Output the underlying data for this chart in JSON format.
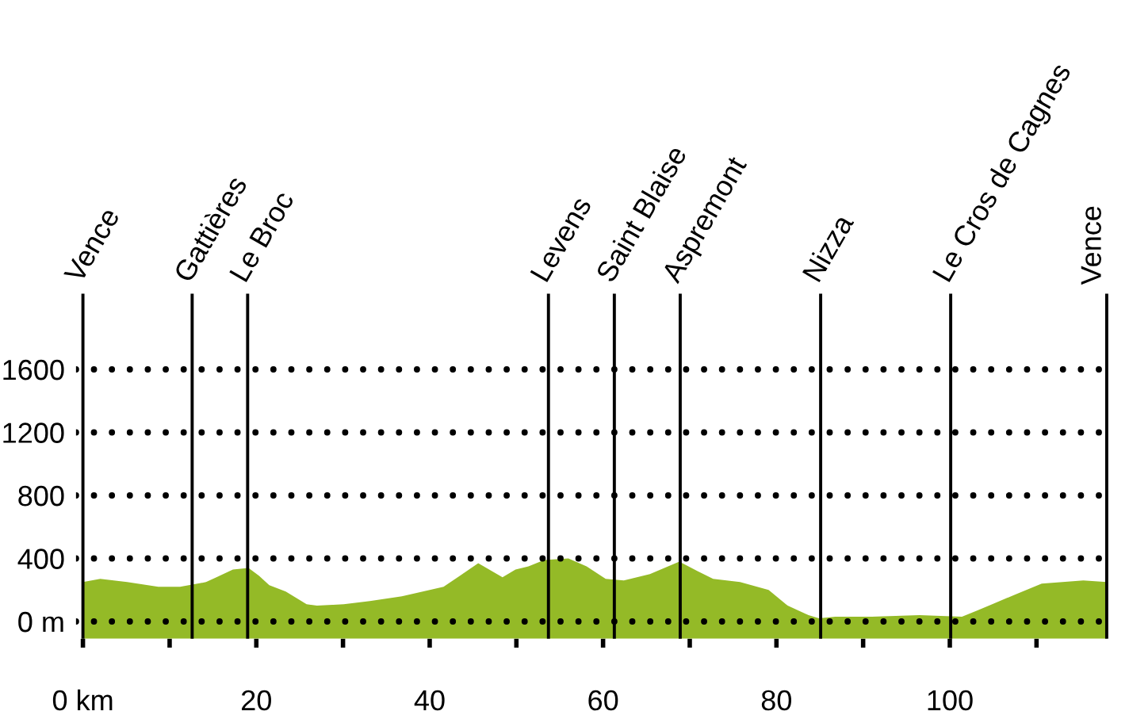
{
  "chart_data": {
    "type": "area",
    "x": [
      0.0,
      2.0,
      5.1,
      8.7,
      11.2,
      14.2,
      15.4,
      17.3,
      19.1,
      20.3,
      21.5,
      23.4,
      25.8,
      27.0,
      30.1,
      33.1,
      36.8,
      39.2,
      41.6,
      43.5,
      45.6,
      48.4,
      49.9,
      51.4,
      53.2,
      56.0,
      58.1,
      60.3,
      62.4,
      65.4,
      68.8,
      70.9,
      72.7,
      75.8,
      79.1,
      81.3,
      83.7,
      84.9,
      86.8,
      91.0,
      96.5,
      101.4,
      103.2,
      107.5,
      110.6,
      115.4,
      118.1
    ],
    "values": [
      250,
      270,
      250,
      220,
      220,
      250,
      280,
      330,
      340,
      290,
      230,
      190,
      110,
      100,
      110,
      130,
      160,
      190,
      220,
      290,
      370,
      280,
      330,
      350,
      390,
      400,
      350,
      270,
      260,
      300,
      380,
      320,
      270,
      250,
      200,
      100,
      40,
      20,
      30,
      30,
      40,
      30,
      70,
      170,
      240,
      260,
      250
    ],
    "color": "#94ba27",
    "xlim": [
      -0.8,
      119.2
    ],
    "xticks": [
      {
        "value": 0,
        "label": "0 km"
      },
      {
        "value": 10,
        "label": null
      },
      20,
      {
        "value": 30,
        "label": null
      },
      40,
      {
        "value": 50,
        "label": null
      },
      60,
      {
        "value": 70,
        "label": null
      },
      80,
      {
        "value": 90,
        "label": null
      },
      100,
      {
        "value": 110,
        "label": null
      }
    ],
    "ylim": [
      -110,
      2080
    ],
    "yticks": [
      {
        "value": 0,
        "label": "0 m"
      },
      400,
      800,
      1200,
      1600
    ],
    "grid": "y",
    "bands": [
      {
        "axis": "y",
        "from": -110,
        "to": 0,
        "color": "#94ba27"
      }
    ],
    "ref_lines": [
      {
        "axis": "x",
        "value": 0,
        "label": "Vence",
        "color": "#000000"
      },
      {
        "axis": "x",
        "value": 12.6,
        "label": "Gattières",
        "color": "#000000"
      },
      {
        "axis": "x",
        "value": 19.0,
        "label": "Le Broc",
        "color": "#000000"
      },
      {
        "axis": "x",
        "value": 53.7,
        "label": "Levens",
        "color": "#000000"
      },
      {
        "axis": "x",
        "value": 61.3,
        "label": "Saint Blaise",
        "color": "#000000"
      },
      {
        "axis": "x",
        "value": 68.9,
        "label": "Aspremont",
        "color": "#000000"
      },
      {
        "axis": "x",
        "value": 85.1,
        "label": "Nizza",
        "color": "#000000"
      },
      {
        "axis": "x",
        "value": 100.1,
        "label": "Le Cros de Cagnes",
        "color": "#000000"
      },
      {
        "axis": "x",
        "value": 118.1,
        "label": "Vence",
        "color": "#000000"
      }
    ]
  }
}
